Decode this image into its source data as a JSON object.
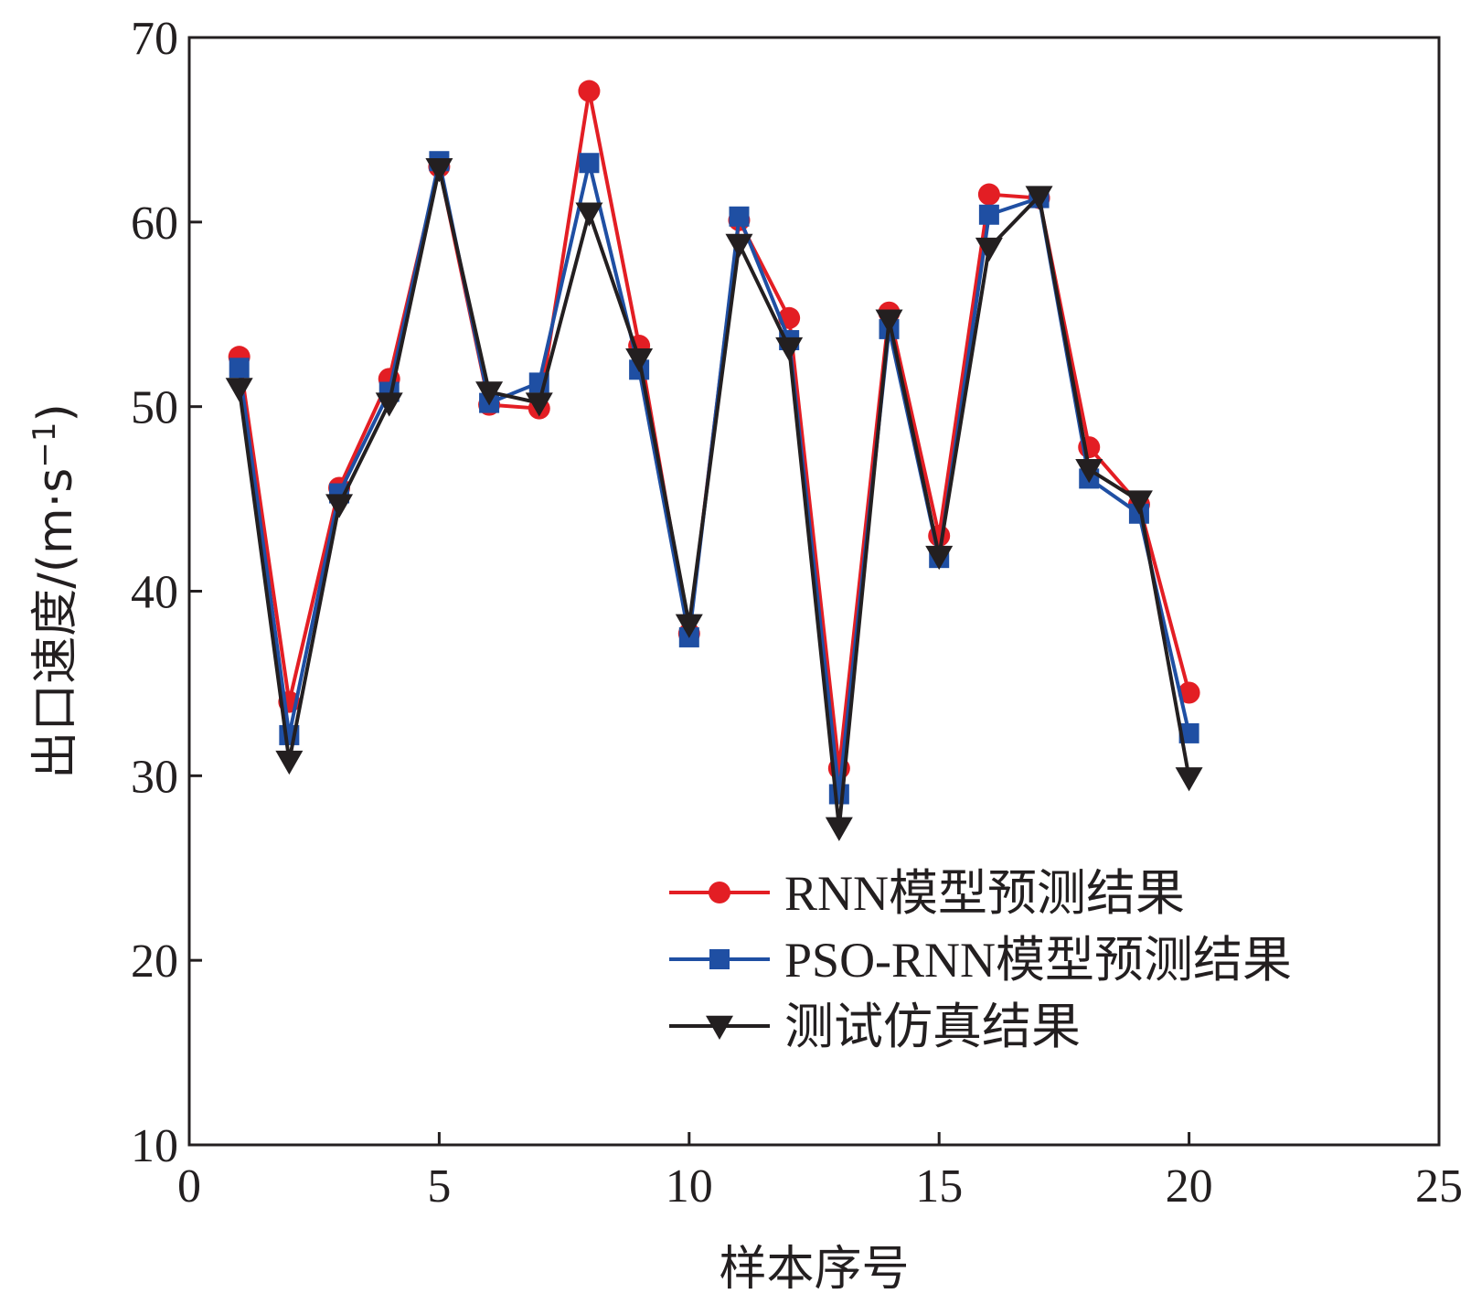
{
  "chart_data": {
    "type": "line",
    "title": "",
    "xlabel": "样本序号",
    "ylabel_main": "出口速度/(m·s",
    "ylabel_sup": "−1",
    "ylabel_close": ")",
    "xlim": [
      0,
      25
    ],
    "ylim": [
      10,
      70
    ],
    "xticks": [
      0,
      5,
      10,
      15,
      20,
      25
    ],
    "yticks": [
      10,
      20,
      30,
      40,
      50,
      60,
      70
    ],
    "grid": false,
    "legend_position": "bottom-right",
    "x": [
      1,
      2,
      3,
      4,
      5,
      6,
      7,
      8,
      9,
      10,
      11,
      12,
      13,
      14,
      15,
      16,
      17,
      18,
      19,
      20
    ],
    "series": [
      {
        "name": "RNN模型预测结果",
        "color": "#e31e24",
        "marker": "circle",
        "values": [
          52.7,
          34.0,
          45.6,
          51.5,
          63.0,
          50.1,
          49.9,
          67.1,
          53.3,
          37.7,
          60.1,
          54.8,
          30.4,
          55.1,
          43.0,
          61.5,
          61.3,
          47.8,
          44.7,
          34.5
        ]
      },
      {
        "name": "PSO-RNN模型预测结果",
        "color": "#1f4fa3",
        "marker": "square",
        "values": [
          52.1,
          32.2,
          45.3,
          50.8,
          63.3,
          50.2,
          51.3,
          63.2,
          52.0,
          37.5,
          60.3,
          53.6,
          29.0,
          54.2,
          41.8,
          60.4,
          61.3,
          46.1,
          44.2,
          32.3
        ]
      },
      {
        "name": "测试仿真结果",
        "color": "#231f20",
        "marker": "triangle-down",
        "values": [
          51.0,
          30.8,
          44.7,
          50.2,
          62.9,
          50.8,
          50.2,
          60.5,
          52.6,
          38.2,
          58.8,
          53.2,
          27.2,
          54.7,
          41.9,
          58.6,
          61.4,
          46.6,
          44.9,
          29.9
        ]
      }
    ]
  }
}
